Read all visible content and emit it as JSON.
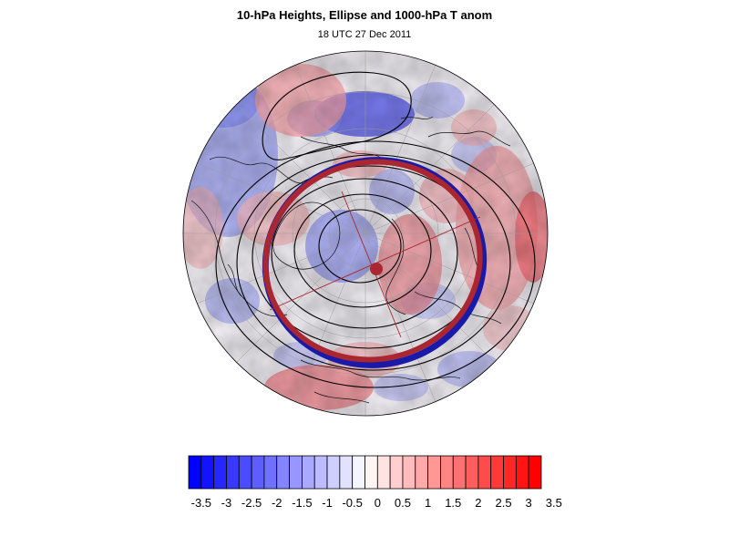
{
  "title": "10-hPa Heights, Ellipse and 1000-hPa T anom",
  "subtitle": "18 UTC 27 Dec 2011",
  "colorbar": {
    "tick_labels": [
      "-3.5",
      "-3",
      "-2.5",
      "-2",
      "-1.5",
      "-1",
      "-0.5",
      "0",
      "0.5",
      "1",
      "1.5",
      "2",
      "2.5",
      "3",
      "3.5"
    ],
    "levels": 28,
    "range": [
      -3.5,
      3.5
    ],
    "cold_color": "#0000ff",
    "warm_color": "#ff0000"
  },
  "map": {
    "projection": "polar-stereographic-north",
    "ellipse_outer_color": "#1a1aa8",
    "ellipse_inner_color": "#aa2630",
    "centroid_color": "#aa2630",
    "contour_color": "#000000"
  }
}
